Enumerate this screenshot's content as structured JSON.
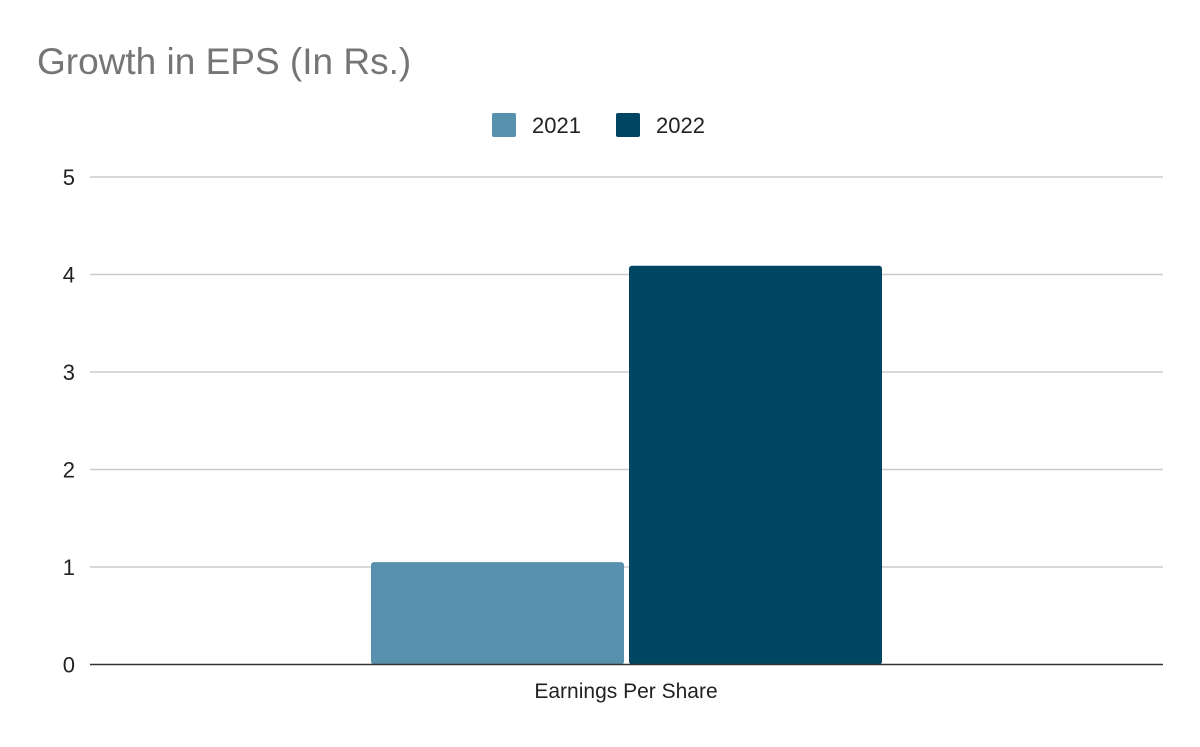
{
  "chart_data": {
    "type": "bar",
    "title": "Growth in EPS (In Rs.)",
    "categories": [
      "Earnings Per Share"
    ],
    "series": [
      {
        "name": "2021",
        "values": [
          1.05
        ],
        "color": "#5891ad"
      },
      {
        "name": "2022",
        "values": [
          4.09
        ],
        "color": "#004561"
      }
    ],
    "xlabel": "",
    "ylabel": "",
    "ylim": [
      0,
      5
    ],
    "yticks": [
      "0",
      "1",
      "2",
      "3",
      "4",
      "5"
    ],
    "grid": true,
    "legend_position": "top-center",
    "colors": {
      "title": "#757575",
      "text": "#222222",
      "grid": "#cccccc",
      "axis": "#333333"
    }
  }
}
